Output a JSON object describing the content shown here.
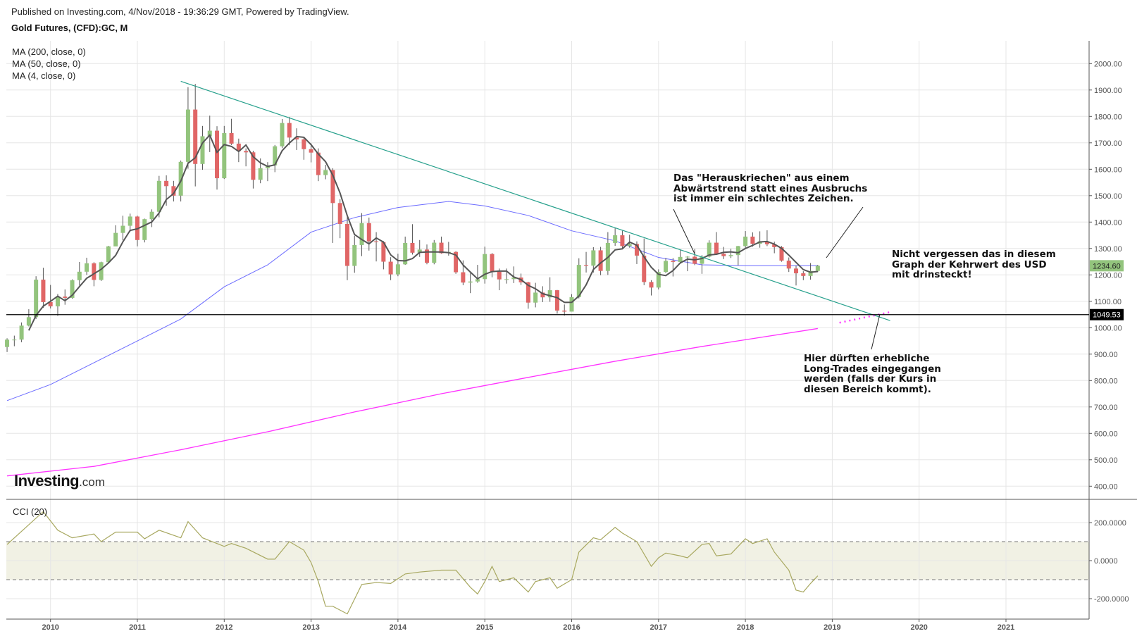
{
  "header": {
    "published": "Published on Investing.com, 4/Nov/2018 - 19:36:29 GMT, Powered by TradingView.",
    "title": "Gold Futures, (CFD):GC, M"
  },
  "legend": [
    "MA (200, close, 0)",
    "MA (50, close, 0)",
    "MA (4, close, 0)"
  ],
  "logo": {
    "brand": "Investing",
    "suffix": ".com"
  },
  "annotations": {
    "top": "Das \"Herauskriechen\" aus einem\nAbwärtstrend statt eines Ausbruchs\nist immer ein schlechtes Zeichen.",
    "right": "Nicht vergessen das in diesem\nGraph der Kehrwert des USD\nmit drinsteckt!",
    "bottom": "Hier dürften erhebliche\nLong-Trades eingegangen\nwerden (falls der Kurs in\ndiesen Bereich kommt)."
  },
  "colors": {
    "up": "#93c47d",
    "down": "#e06666",
    "wick": "#555555",
    "ma4": "#555555",
    "ma50": "#6b6bff",
    "ma200": "#ff33ff",
    "trendline": "#26a08c",
    "cci": "#a8a860",
    "cci_band": "#f1f1e4"
  },
  "chart_data": [
    {
      "type": "candlestick",
      "interval": "monthly",
      "x_ticks": [
        "2010",
        "2011",
        "2012",
        "2013",
        "2014",
        "2015",
        "2016",
        "2017",
        "2018",
        "2019",
        "2020",
        "2021"
      ],
      "y_ticks": [
        "400.00",
        "500.00",
        "600.00",
        "700.00",
        "800.00",
        "900.00",
        "1000.00",
        "1100.00",
        "1200.00",
        "1300.00",
        "1400.00",
        "1500.00",
        "1600.00",
        "1700.00",
        "1800.00",
        "1900.00",
        "2000.00"
      ],
      "ylim": [
        350,
        2080
      ],
      "grid": true,
      "last_price": "1234.60",
      "horizontal_line": {
        "value": 1049.53,
        "label": "1049.53"
      },
      "trendline": [
        [
          "2011-07",
          1933
        ],
        [
          "2019-09",
          1027
        ]
      ],
      "dotted_line": [
        [
          "2019-02",
          1019
        ],
        [
          "2019-09",
          1059
        ]
      ],
      "ohlc": [
        [
          "2009-07",
          927,
          960,
          908,
          955
        ],
        [
          "2009-08",
          955,
          970,
          930,
          955
        ],
        [
          "2009-09",
          955,
          1020,
          945,
          1008
        ],
        [
          "2009-10",
          1008,
          1070,
          1005,
          1040
        ],
        [
          "2009-11",
          1040,
          1195,
          1033,
          1182
        ],
        [
          "2009-12",
          1182,
          1227,
          1075,
          1097
        ],
        [
          "2010-01",
          1097,
          1162,
          1073,
          1081
        ],
        [
          "2010-02",
          1081,
          1128,
          1045,
          1118
        ],
        [
          "2010-03",
          1118,
          1145,
          1087,
          1113
        ],
        [
          "2010-04",
          1113,
          1183,
          1110,
          1180
        ],
        [
          "2010-05",
          1180,
          1249,
          1160,
          1212
        ],
        [
          "2010-06",
          1212,
          1265,
          1200,
          1244
        ],
        [
          "2010-07",
          1244,
          1248,
          1157,
          1181
        ],
        [
          "2010-08",
          1181,
          1250,
          1177,
          1248
        ],
        [
          "2010-09",
          1248,
          1310,
          1242,
          1308
        ],
        [
          "2010-10",
          1308,
          1388,
          1315,
          1359
        ],
        [
          "2010-11",
          1359,
          1424,
          1331,
          1386
        ],
        [
          "2010-12",
          1386,
          1432,
          1363,
          1421
        ],
        [
          "2011-01",
          1421,
          1424,
          1308,
          1332
        ],
        [
          "2011-02",
          1332,
          1413,
          1323,
          1411
        ],
        [
          "2011-03",
          1411,
          1448,
          1381,
          1439
        ],
        [
          "2011-04",
          1439,
          1575,
          1418,
          1556
        ],
        [
          "2011-05",
          1556,
          1577,
          1462,
          1536
        ],
        [
          "2011-06",
          1536,
          1556,
          1478,
          1500
        ],
        [
          "2011-07",
          1500,
          1633,
          1478,
          1628
        ],
        [
          "2011-08",
          1628,
          1911,
          1602,
          1826
        ],
        [
          "2011-09",
          1826,
          1923,
          1535,
          1620
        ],
        [
          "2011-10",
          1620,
          1764,
          1598,
          1725
        ],
        [
          "2011-11",
          1725,
          1803,
          1665,
          1746
        ],
        [
          "2011-12",
          1746,
          1763,
          1523,
          1566
        ],
        [
          "2012-01",
          1566,
          1764,
          1563,
          1737
        ],
        [
          "2012-02",
          1737,
          1791,
          1692,
          1697
        ],
        [
          "2012-03",
          1697,
          1716,
          1627,
          1669
        ],
        [
          "2012-04",
          1669,
          1679,
          1611,
          1664
        ],
        [
          "2012-05",
          1664,
          1670,
          1527,
          1560
        ],
        [
          "2012-06",
          1560,
          1641,
          1547,
          1604
        ],
        [
          "2012-07",
          1604,
          1627,
          1555,
          1615
        ],
        [
          "2012-08",
          1615,
          1692,
          1589,
          1687
        ],
        [
          "2012-09",
          1687,
          1790,
          1680,
          1775
        ],
        [
          "2012-10",
          1775,
          1798,
          1691,
          1720
        ],
        [
          "2012-11",
          1720,
          1755,
          1673,
          1713
        ],
        [
          "2012-12",
          1713,
          1723,
          1636,
          1676
        ],
        [
          "2013-01",
          1676,
          1698,
          1626,
          1663
        ],
        [
          "2013-02",
          1663,
          1679,
          1555,
          1578
        ],
        [
          "2013-03",
          1578,
          1617,
          1562,
          1597
        ],
        [
          "2013-04",
          1597,
          1604,
          1321,
          1472
        ],
        [
          "2013-05",
          1472,
          1487,
          1339,
          1393
        ],
        [
          "2013-06",
          1393,
          1424,
          1180,
          1234
        ],
        [
          "2013-07",
          1234,
          1348,
          1208,
          1313
        ],
        [
          "2013-08",
          1313,
          1434,
          1271,
          1396
        ],
        [
          "2013-09",
          1396,
          1417,
          1292,
          1327
        ],
        [
          "2013-10",
          1327,
          1362,
          1251,
          1324
        ],
        [
          "2013-11",
          1324,
          1328,
          1221,
          1250
        ],
        [
          "2013-12",
          1250,
          1267,
          1180,
          1202
        ],
        [
          "2014-01",
          1202,
          1280,
          1195,
          1240
        ],
        [
          "2014-02",
          1240,
          1345,
          1238,
          1321
        ],
        [
          "2014-03",
          1321,
          1392,
          1277,
          1284
        ],
        [
          "2014-04",
          1284,
          1332,
          1268,
          1296
        ],
        [
          "2014-05",
          1296,
          1315,
          1240,
          1246
        ],
        [
          "2014-06",
          1246,
          1332,
          1240,
          1322
        ],
        [
          "2014-07",
          1322,
          1345,
          1280,
          1282
        ],
        [
          "2014-08",
          1282,
          1325,
          1273,
          1287
        ],
        [
          "2014-09",
          1287,
          1290,
          1204,
          1210
        ],
        [
          "2014-10",
          1210,
          1255,
          1161,
          1171
        ],
        [
          "2014-11",
          1171,
          1206,
          1131,
          1175
        ],
        [
          "2014-12",
          1175,
          1238,
          1170,
          1184
        ],
        [
          "2015-01",
          1184,
          1307,
          1167,
          1279
        ],
        [
          "2015-02",
          1279,
          1283,
          1191,
          1212
        ],
        [
          "2015-03",
          1212,
          1224,
          1142,
          1183
        ],
        [
          "2015-04",
          1183,
          1224,
          1167,
          1184
        ],
        [
          "2015-05",
          1184,
          1232,
          1169,
          1190
        ],
        [
          "2015-06",
          1190,
          1205,
          1162,
          1172
        ],
        [
          "2015-07",
          1172,
          1174,
          1072,
          1095
        ],
        [
          "2015-08",
          1095,
          1170,
          1077,
          1133
        ],
        [
          "2015-09",
          1133,
          1157,
          1097,
          1115
        ],
        [
          "2015-10",
          1115,
          1191,
          1098,
          1142
        ],
        [
          "2015-11",
          1142,
          1143,
          1053,
          1065
        ],
        [
          "2015-12",
          1065,
          1088,
          1046,
          1061
        ],
        [
          "2016-01",
          1061,
          1127,
          1062,
          1116
        ],
        [
          "2016-02",
          1116,
          1263,
          1111,
          1238
        ],
        [
          "2016-03",
          1238,
          1287,
          1209,
          1235
        ],
        [
          "2016-04",
          1235,
          1305,
          1209,
          1293
        ],
        [
          "2016-05",
          1293,
          1306,
          1199,
          1215
        ],
        [
          "2016-06",
          1215,
          1362,
          1200,
          1321
        ],
        [
          "2016-07",
          1321,
          1377,
          1310,
          1350
        ],
        [
          "2016-08",
          1350,
          1367,
          1302,
          1309
        ],
        [
          "2016-09",
          1309,
          1352,
          1303,
          1317
        ],
        [
          "2016-10",
          1317,
          1327,
          1241,
          1273
        ],
        [
          "2016-11",
          1273,
          1338,
          1161,
          1173
        ],
        [
          "2016-12",
          1173,
          1180,
          1122,
          1152
        ],
        [
          "2017-01",
          1152,
          1221,
          1145,
          1211
        ],
        [
          "2017-02",
          1211,
          1264,
          1207,
          1253
        ],
        [
          "2017-03",
          1253,
          1264,
          1194,
          1249
        ],
        [
          "2017-04",
          1249,
          1297,
          1242,
          1268
        ],
        [
          "2017-05",
          1268,
          1271,
          1214,
          1269
        ],
        [
          "2017-06",
          1269,
          1298,
          1237,
          1242
        ],
        [
          "2017-07",
          1242,
          1275,
          1204,
          1269
        ],
        [
          "2017-08",
          1269,
          1331,
          1266,
          1322
        ],
        [
          "2017-09",
          1322,
          1362,
          1278,
          1280
        ],
        [
          "2017-10",
          1280,
          1306,
          1260,
          1271
        ],
        [
          "2017-11",
          1271,
          1299,
          1264,
          1275
        ],
        [
          "2017-12",
          1275,
          1310,
          1236,
          1309
        ],
        [
          "2018-01",
          1309,
          1366,
          1303,
          1345
        ],
        [
          "2018-02",
          1345,
          1361,
          1307,
          1318
        ],
        [
          "2018-03",
          1318,
          1365,
          1303,
          1327
        ],
        [
          "2018-04",
          1327,
          1369,
          1309,
          1316
        ],
        [
          "2018-05",
          1316,
          1326,
          1282,
          1305
        ],
        [
          "2018-06",
          1305,
          1309,
          1250,
          1254
        ],
        [
          "2018-07",
          1254,
          1266,
          1211,
          1224
        ],
        [
          "2018-08",
          1224,
          1235,
          1160,
          1206
        ],
        [
          "2018-09",
          1206,
          1214,
          1180,
          1196
        ],
        [
          "2018-10",
          1196,
          1245,
          1182,
          1215
        ],
        [
          "2018-11",
          1215,
          1238,
          1211,
          1234.6
        ]
      ],
      "ma50": [
        [
          "2009-07",
          724
        ],
        [
          "2010-01",
          785
        ],
        [
          "2011-01",
          950
        ],
        [
          "2011-07",
          1033
        ],
        [
          "2012-01",
          1155
        ],
        [
          "2012-07",
          1238
        ],
        [
          "2013-01",
          1362
        ],
        [
          "2013-07",
          1417
        ],
        [
          "2014-01",
          1455
        ],
        [
          "2014-08",
          1478
        ],
        [
          "2015-01",
          1461
        ],
        [
          "2015-07",
          1425
        ],
        [
          "2016-01",
          1367
        ],
        [
          "2016-07",
          1329
        ],
        [
          "2017-01",
          1266
        ],
        [
          "2017-07",
          1238
        ],
        [
          "2018-01",
          1235
        ],
        [
          "2018-11",
          1235
        ]
      ],
      "ma200": [
        [
          "2009-07",
          439
        ],
        [
          "2010-07",
          475
        ],
        [
          "2011-07",
          538
        ],
        [
          "2012-07",
          606
        ],
        [
          "2013-07",
          681
        ],
        [
          "2014-07",
          750
        ],
        [
          "2015-07",
          812
        ],
        [
          "2016-07",
          873
        ],
        [
          "2017-07",
          929
        ],
        [
          "2018-11",
          997
        ]
      ]
    },
    {
      "type": "line",
      "title": "CCI (20)",
      "y_ticks": [
        "200.0000",
        "0.0000",
        "-200.0000"
      ],
      "band": [
        -100,
        100
      ],
      "ylim": [
        -330,
        310
      ],
      "points": [
        [
          "2009-07",
          85
        ],
        [
          "2009-12",
          258
        ],
        [
          "2010-02",
          160
        ],
        [
          "2010-04",
          120
        ],
        [
          "2010-07",
          140
        ],
        [
          "2010-08",
          100
        ],
        [
          "2010-10",
          150
        ],
        [
          "2011-01",
          150
        ],
        [
          "2011-02",
          115
        ],
        [
          "2011-04",
          160
        ],
        [
          "2011-07",
          120
        ],
        [
          "2011-08",
          205
        ],
        [
          "2011-10",
          120
        ],
        [
          "2012-01",
          75
        ],
        [
          "2012-02",
          90
        ],
        [
          "2012-04",
          65
        ],
        [
          "2012-07",
          8
        ],
        [
          "2012-08",
          8
        ],
        [
          "2012-10",
          100
        ],
        [
          "2012-12",
          55
        ],
        [
          "2013-01",
          -10
        ],
        [
          "2013-02",
          -110
        ],
        [
          "2013-03",
          -240
        ],
        [
          "2013-04",
          -240
        ],
        [
          "2013-06",
          -280
        ],
        [
          "2013-08",
          -125
        ],
        [
          "2013-10",
          -115
        ],
        [
          "2013-12",
          -120
        ],
        [
          "2014-02",
          -70
        ],
        [
          "2014-04",
          -60
        ],
        [
          "2014-07",
          -50
        ],
        [
          "2014-09",
          -50
        ],
        [
          "2014-11",
          -140
        ],
        [
          "2014-12",
          -175
        ],
        [
          "2015-01",
          -110
        ],
        [
          "2015-02",
          -30
        ],
        [
          "2015-03",
          -110
        ],
        [
          "2015-05",
          -90
        ],
        [
          "2015-07",
          -165
        ],
        [
          "2015-08",
          -110
        ],
        [
          "2015-10",
          -90
        ],
        [
          "2015-11",
          -145
        ],
        [
          "2016-01",
          -100
        ],
        [
          "2016-02",
          45
        ],
        [
          "2016-04",
          120
        ],
        [
          "2016-05",
          110
        ],
        [
          "2016-07",
          175
        ],
        [
          "2016-08",
          145
        ],
        [
          "2016-10",
          100
        ],
        [
          "2016-12",
          -30
        ],
        [
          "2017-01",
          15
        ],
        [
          "2017-02",
          40
        ],
        [
          "2017-04",
          25
        ],
        [
          "2017-05",
          15
        ],
        [
          "2017-07",
          85
        ],
        [
          "2017-08",
          90
        ],
        [
          "2017-09",
          25
        ],
        [
          "2017-11",
          35
        ],
        [
          "2018-01",
          115
        ],
        [
          "2018-02",
          90
        ],
        [
          "2018-04",
          115
        ],
        [
          "2018-05",
          45
        ],
        [
          "2018-07",
          -50
        ],
        [
          "2018-08",
          -155
        ],
        [
          "2018-09",
          -165
        ],
        [
          "2018-10",
          -120
        ],
        [
          "2018-11",
          -80
        ]
      ]
    }
  ]
}
